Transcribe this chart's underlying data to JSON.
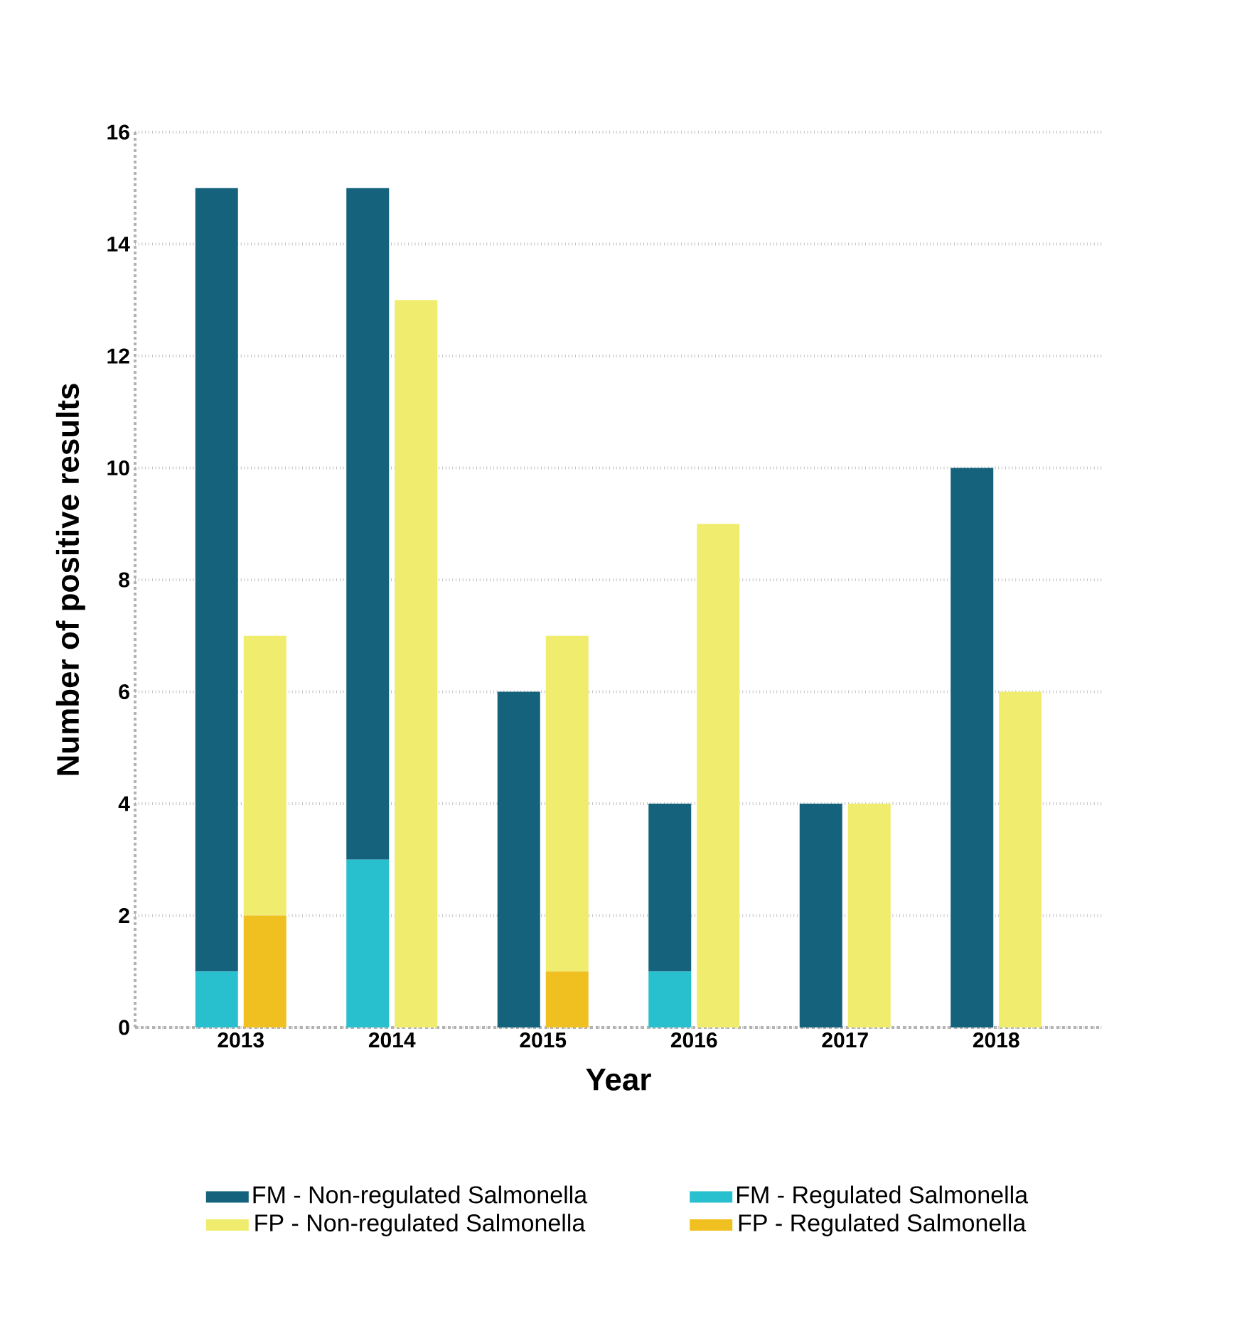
{
  "chart_data": {
    "type": "bar",
    "xlabel": "Year",
    "ylabel": "Number of positive results",
    "categories": [
      "2013",
      "2014",
      "2015",
      "2016",
      "2017",
      "2018"
    ],
    "series": [
      {
        "name": "FM - Non-regulated Salmonella",
        "color": "#14627c",
        "values": [
          14,
          12,
          6,
          3,
          4,
          10
        ],
        "base": [
          1,
          3,
          0,
          1,
          0,
          0
        ]
      },
      {
        "name": "FM - Regulated Salmonella",
        "color": "#28c0cf",
        "values": [
          1,
          3,
          0,
          1,
          0,
          0
        ]
      },
      {
        "name": "FP - Non-regulated Salmonella",
        "color": "#f0ec6e",
        "values": [
          5,
          13,
          6,
          9,
          4,
          6
        ],
        "base": [
          2,
          0,
          1,
          0,
          0,
          0
        ]
      },
      {
        "name": "FP - Regulated Salmonella",
        "color": "#f0c020",
        "values": [
          2,
          0,
          1,
          0,
          0,
          0
        ]
      }
    ],
    "ylim": [
      0,
      16
    ],
    "yticks": [
      0,
      2,
      4,
      6,
      8,
      10,
      12,
      14,
      16
    ],
    "grid": "y",
    "legend": "bottom"
  }
}
